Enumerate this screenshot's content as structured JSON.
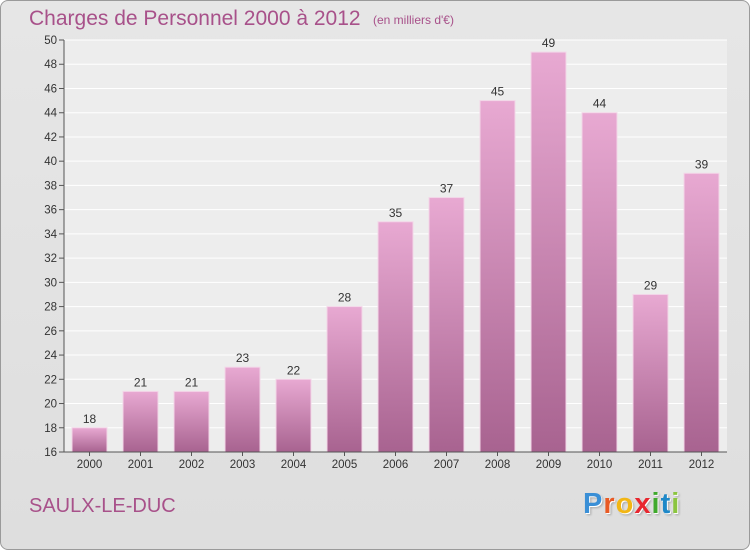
{
  "header": {
    "title": "Charges de Personnel 2000 à 2012",
    "subtitle": "(en milliers d'€)"
  },
  "footer": {
    "commune": "SAULX-LE-DUC",
    "logo": {
      "name": "Proxiti",
      "letters": [
        "P",
        "r",
        "o",
        "x",
        "i",
        "t",
        "i"
      ],
      "colors": [
        "#3a8fd6",
        "#e85a24",
        "#f2b614",
        "#e8272f",
        "#3fa92c",
        "#1e88c8",
        "#8bc53f"
      ]
    }
  },
  "colors": {
    "accent": "#a8518a",
    "bar_top": "#e8a9d2",
    "bar_bottom": "#a86390"
  },
  "chart_data": {
    "type": "bar",
    "categories": [
      "2000",
      "2001",
      "2002",
      "2003",
      "2004",
      "2005",
      "2006",
      "2007",
      "2008",
      "2009",
      "2010",
      "2011",
      "2012"
    ],
    "values": [
      18,
      21,
      21,
      23,
      22,
      28,
      35,
      37,
      45,
      49,
      44,
      29,
      39
    ],
    "title": "Charges de Personnel 2000 à 2012",
    "ylim": [
      16,
      50
    ],
    "yticks": [
      16,
      18,
      20,
      22,
      24,
      26,
      28,
      30,
      32,
      34,
      36,
      38,
      40,
      42,
      44,
      46,
      48,
      50
    ],
    "grid": true
  }
}
